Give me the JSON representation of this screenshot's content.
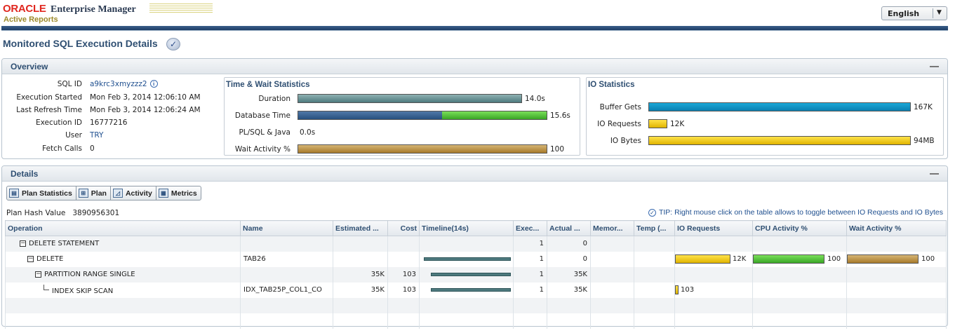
{
  "header": {
    "oracle": "ORACLE",
    "product": "Enterprise Manager",
    "subtitle": "Active Reports",
    "language": "English"
  },
  "page": {
    "title": "Monitored SQL Execution Details"
  },
  "overview": {
    "title": "Overview",
    "info": [
      {
        "label": "SQL ID",
        "value": "a9krc3xmyzzz2",
        "link": true
      },
      {
        "label": "Execution Started",
        "value": "Mon Feb 3, 2014 12:06:10 AM"
      },
      {
        "label": "Last Refresh Time",
        "value": "Mon Feb 3, 2014 12:06:24 AM"
      },
      {
        "label": "Execution ID",
        "value": "16777216"
      },
      {
        "label": "User",
        "value": "TRY",
        "link": true
      },
      {
        "label": "Fetch Calls",
        "value": "0"
      }
    ],
    "time_wait": {
      "title": "Time & Wait Statistics",
      "duration": {
        "label": "Duration",
        "value": "14.0s",
        "fraction": 0.9
      },
      "db_time": {
        "label": "Database Time",
        "value": "15.6s",
        "fraction": 1.0,
        "split": 0.58
      },
      "plsql": {
        "label": "PL/SQL & Java",
        "value": "0.0s"
      },
      "wait": {
        "label": "Wait Activity %",
        "value": "100",
        "fraction": 1.0
      }
    },
    "io": {
      "title": "IO Statistics",
      "buffer_gets": {
        "label": "Buffer Gets",
        "value": "167K",
        "fraction": 1.0
      },
      "io_requests": {
        "label": "IO Requests",
        "value": "12K",
        "fraction": 0.07
      },
      "io_bytes": {
        "label": "IO Bytes",
        "value": "94MB",
        "fraction": 0.99
      }
    }
  },
  "details": {
    "title": "Details",
    "tabs": [
      "Plan Statistics",
      "Plan",
      "Activity",
      "Metrics"
    ],
    "plan_hash_label": "Plan Hash Value",
    "plan_hash_value": "3890956301",
    "tip": "TIP: Right mouse click on the table allows to toggle between IO Requests and IO Bytes",
    "columns": [
      "Operation",
      "Name",
      "Estimated ...",
      "Cost",
      "Timeline(14s)",
      "Exec...",
      "Actual ...",
      "Memor...",
      "Temp (...",
      "IO Requests",
      "CPU Activity %",
      "Wait Activity %"
    ],
    "rows": [
      {
        "operation": "DELETE STATEMENT",
        "indent": 0,
        "name": "",
        "estimated": "",
        "cost": "",
        "executions": "1",
        "actual": "0"
      },
      {
        "operation": "DELETE",
        "indent": 1,
        "name": "TAB26",
        "estimated": "",
        "cost": "",
        "executions": "1",
        "actual": "0",
        "io_requests": "12K",
        "cpu": "100",
        "wait": "100",
        "timeline": [
          0.0,
          1.0
        ]
      },
      {
        "operation": "PARTITION RANGE SINGLE",
        "indent": 2,
        "name": "",
        "estimated": "35K",
        "cost": "103",
        "executions": "1",
        "actual": "35K",
        "timeline": [
          0.07,
          0.93
        ]
      },
      {
        "operation": "INDEX SKIP SCAN",
        "indent": 3,
        "name": "IDX_TAB25P_COL1_CO",
        "estimated": "35K",
        "cost": "103",
        "executions": "1",
        "actual": "35K",
        "io_requests": "103",
        "timeline": [
          0.07,
          0.93
        ]
      }
    ]
  }
}
